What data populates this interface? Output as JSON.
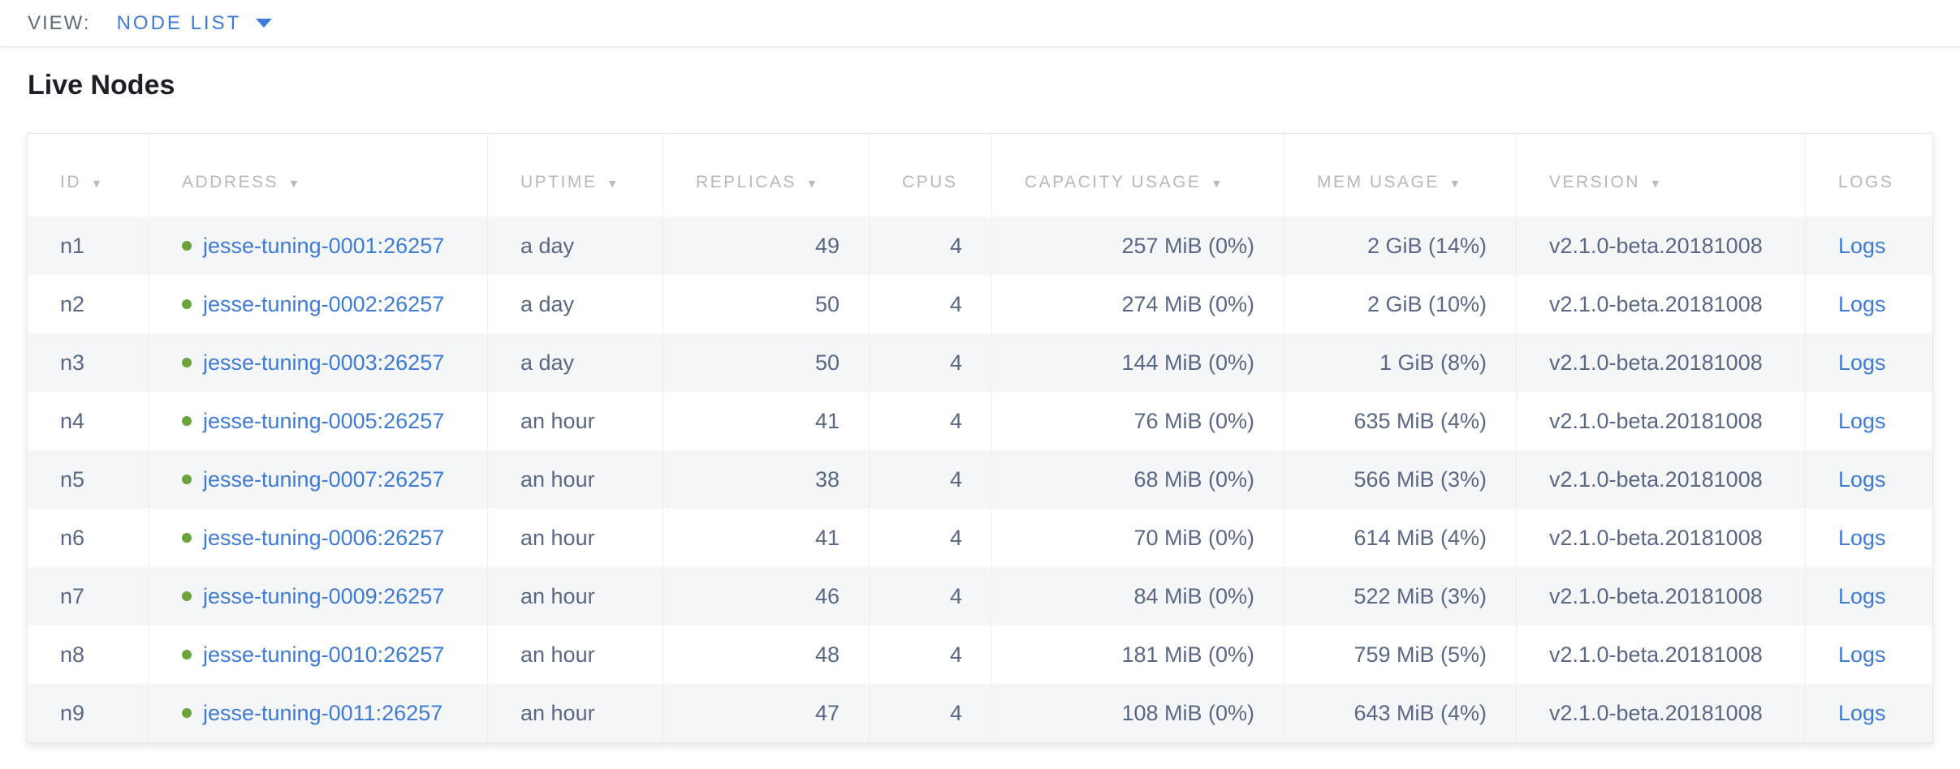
{
  "view_bar": {
    "label": "VIEW:",
    "selected": "NODE LIST"
  },
  "page": {
    "title": "Live Nodes"
  },
  "icons": {
    "sort_arrow": "▼"
  },
  "colors": {
    "link_blue": "#3e7bd8",
    "status_ok_green": "#6aa43a",
    "header_gray": "#b6b8bc",
    "body_slate": "#5a6885",
    "row_stripe": "#f5f6f7"
  },
  "table": {
    "columns": [
      {
        "label": "ID",
        "sortable": true
      },
      {
        "label": "ADDRESS",
        "sortable": true
      },
      {
        "label": "UPTIME",
        "sortable": true
      },
      {
        "label": "REPLICAS",
        "sortable": true
      },
      {
        "label": "CPUS",
        "sortable": false
      },
      {
        "label": "CAPACITY USAGE",
        "sortable": true
      },
      {
        "label": "MEM USAGE",
        "sortable": true
      },
      {
        "label": "VERSION",
        "sortable": true
      },
      {
        "label": "LOGS",
        "sortable": false
      }
    ],
    "rows": [
      {
        "id": "n1",
        "address": "jesse-tuning-0001:26257",
        "uptime": "a day",
        "replicas": "49",
        "cpus": "4",
        "capacity": "257 MiB (0%)",
        "mem": "2 GiB (14%)",
        "version": "v2.1.0-beta.20181008",
        "logs": "Logs"
      },
      {
        "id": "n2",
        "address": "jesse-tuning-0002:26257",
        "uptime": "a day",
        "replicas": "50",
        "cpus": "4",
        "capacity": "274 MiB (0%)",
        "mem": "2 GiB (10%)",
        "version": "v2.1.0-beta.20181008",
        "logs": "Logs"
      },
      {
        "id": "n3",
        "address": "jesse-tuning-0003:26257",
        "uptime": "a day",
        "replicas": "50",
        "cpus": "4",
        "capacity": "144 MiB (0%)",
        "mem": "1 GiB (8%)",
        "version": "v2.1.0-beta.20181008",
        "logs": "Logs"
      },
      {
        "id": "n4",
        "address": "jesse-tuning-0005:26257",
        "uptime": "an hour",
        "replicas": "41",
        "cpus": "4",
        "capacity": "76 MiB (0%)",
        "mem": "635 MiB (4%)",
        "version": "v2.1.0-beta.20181008",
        "logs": "Logs"
      },
      {
        "id": "n5",
        "address": "jesse-tuning-0007:26257",
        "uptime": "an hour",
        "replicas": "38",
        "cpus": "4",
        "capacity": "68 MiB (0%)",
        "mem": "566 MiB (3%)",
        "version": "v2.1.0-beta.20181008",
        "logs": "Logs"
      },
      {
        "id": "n6",
        "address": "jesse-tuning-0006:26257",
        "uptime": "an hour",
        "replicas": "41",
        "cpus": "4",
        "capacity": "70 MiB (0%)",
        "mem": "614 MiB (4%)",
        "version": "v2.1.0-beta.20181008",
        "logs": "Logs"
      },
      {
        "id": "n7",
        "address": "jesse-tuning-0009:26257",
        "uptime": "an hour",
        "replicas": "46",
        "cpus": "4",
        "capacity": "84 MiB (0%)",
        "mem": "522 MiB (3%)",
        "version": "v2.1.0-beta.20181008",
        "logs": "Logs"
      },
      {
        "id": "n8",
        "address": "jesse-tuning-0010:26257",
        "uptime": "an hour",
        "replicas": "48",
        "cpus": "4",
        "capacity": "181 MiB (0%)",
        "mem": "759 MiB (5%)",
        "version": "v2.1.0-beta.20181008",
        "logs": "Logs"
      },
      {
        "id": "n9",
        "address": "jesse-tuning-0011:26257",
        "uptime": "an hour",
        "replicas": "47",
        "cpus": "4",
        "capacity": "108 MiB (0%)",
        "mem": "643 MiB (4%)",
        "version": "v2.1.0-beta.20181008",
        "logs": "Logs"
      }
    ]
  }
}
